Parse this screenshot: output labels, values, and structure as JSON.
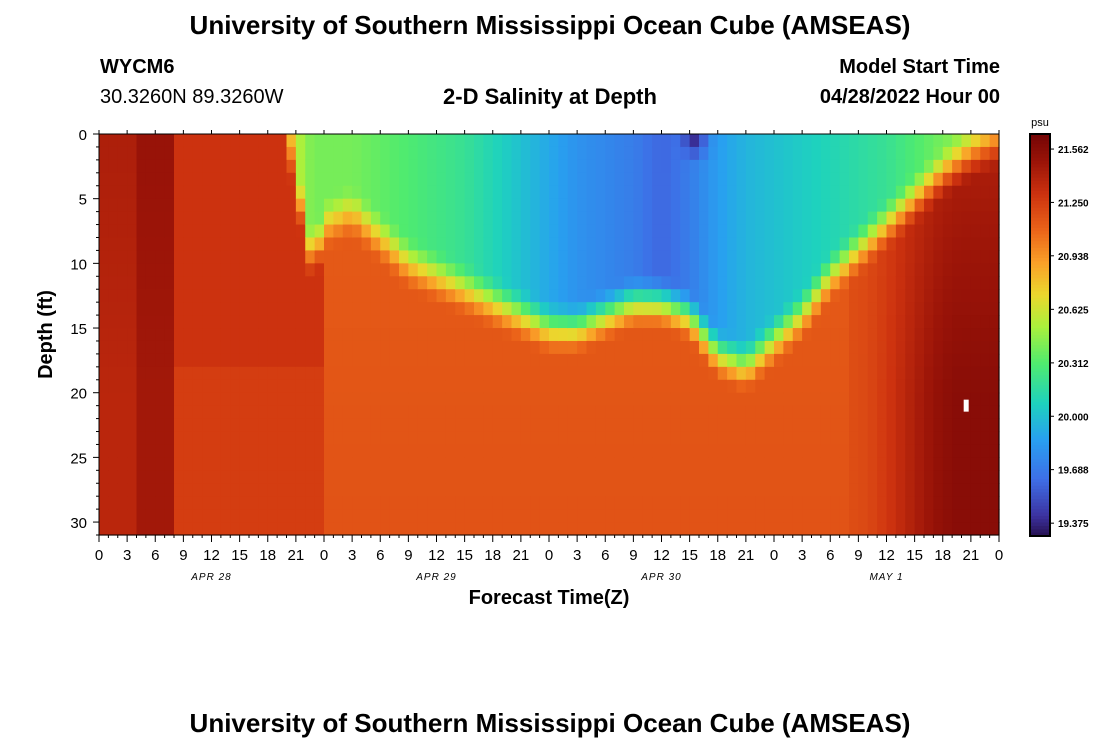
{
  "header": {
    "title": "University of Southern Mississippi Ocean Cube (AMSEAS)",
    "station_id": "WYCM6",
    "station_coords": "30.3260N  89.3260W",
    "subtitle": "2-D Salinity at Depth",
    "model_start_label": "Model Start Time",
    "model_start_value": "04/28/2022 Hour 00"
  },
  "footer": {
    "title": "University of Southern Mississippi Ocean Cube (AMSEAS)"
  },
  "chart_data": {
    "type": "heatmap",
    "title": "2-D Salinity at Depth",
    "xlabel": "Forecast Time(Z)",
    "ylabel": "Depth (ft)",
    "x_range_hours": [
      0,
      96
    ],
    "ylim": [
      0,
      31
    ],
    "y_ticks": [
      0,
      5,
      10,
      15,
      20,
      25,
      30
    ],
    "x_tick_labels": [
      "0",
      "3",
      "6",
      "9",
      "12",
      "15",
      "18",
      "21",
      "0",
      "3",
      "6",
      "9",
      "12",
      "15",
      "18",
      "21",
      "0",
      "3",
      "6",
      "9",
      "12",
      "15",
      "18",
      "21",
      "0",
      "3",
      "6",
      "9",
      "12",
      "15",
      "18",
      "21",
      "0"
    ],
    "date_labels": [
      {
        "label": "APR 28",
        "hour": 12
      },
      {
        "label": "APR 29",
        "hour": 36
      },
      {
        "label": "APR 30",
        "hour": 60
      },
      {
        "label": "MAY 1",
        "hour": 84
      }
    ],
    "colorbar": {
      "unit": "psu",
      "min": 19.3,
      "max": 21.65,
      "tick_labels": [
        "21.562",
        "21.250",
        "20.938",
        "20.625",
        "20.312",
        "20.000",
        "19.688",
        "19.375"
      ]
    },
    "fresh_layer": {
      "hours": [
        0,
        12,
        18,
        20,
        21,
        22,
        23,
        24,
        27,
        30,
        33,
        36,
        39,
        42,
        45,
        48,
        51,
        54,
        57,
        60,
        63,
        66,
        69,
        72,
        75,
        78,
        81,
        84,
        87,
        90,
        93,
        96
      ],
      "bottom_ft": [
        0,
        0,
        0,
        0.5,
        3,
        8,
        10,
        7,
        6,
        8,
        10,
        11,
        12,
        13,
        14,
        15,
        15,
        14,
        13,
        13,
        14,
        17,
        18,
        16,
        14,
        11,
        9,
        7,
        5,
        3,
        1.5,
        0.5
      ],
      "min_salinity": [
        21.3,
        21.3,
        21.3,
        20.9,
        20.6,
        20.45,
        20.4,
        20.4,
        20.4,
        20.35,
        20.3,
        20.25,
        20.2,
        20.1,
        20.0,
        19.9,
        19.8,
        19.75,
        19.7,
        19.6,
        19.7,
        19.85,
        19.95,
        20.0,
        20.05,
        20.1,
        20.15,
        20.2,
        20.3,
        20.4,
        20.5,
        20.6
      ]
    },
    "annotations": [
      {
        "type": "dark-spot",
        "hour": 63.5,
        "depth_ft": 0.6,
        "salinity": 19.4
      },
      {
        "type": "white-marker",
        "hour": 92.5,
        "depth_ft": 21
      }
    ]
  }
}
